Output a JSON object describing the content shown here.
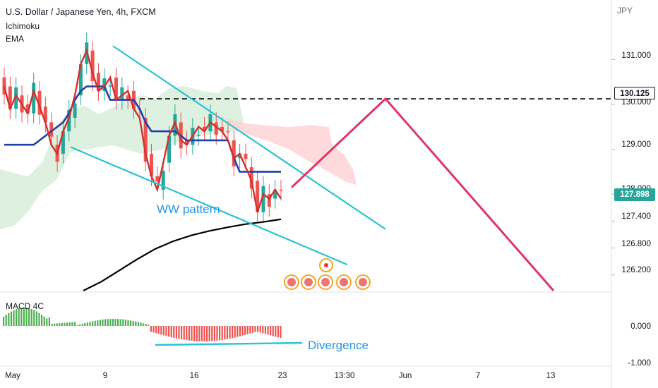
{
  "header": {
    "symbol": "U.S. Dollar / Japanese Yen, 4h, FXCM",
    "indicator_1": "Ichimoku",
    "indicator_2": "EMA",
    "macd_label": "MACD 4C"
  },
  "axis": {
    "unit": "JPY"
  },
  "price_boxes": {
    "level": "130.125",
    "last": "127.898"
  },
  "annotations": {
    "pattern": "WW pattern",
    "divergence": "Divergence"
  },
  "colors": {
    "projection": "#e0336b",
    "trendlines": "#28c3d4",
    "kijun": "#1f3fa8",
    "tenkan": "#d32f2f",
    "ema": "#000000",
    "cloud_bull": "#c8e6c9",
    "cloud_bear": "#ffcdd2",
    "candle_up": "#26a69a",
    "candle_down": "#ef5350"
  },
  "chart_data": {
    "type": "line",
    "title": "U.S. Dollar / Japanese Yen, 4h, FXCM",
    "ylabel": "JPY",
    "ylim": [
      125.85,
      132.2
    ],
    "y_ticks": [
      "131.000",
      "130.000",
      "129.000",
      "128.000",
      "127.400",
      "126.800",
      "126.200"
    ],
    "x_ticks": [
      "May",
      "9",
      "16",
      "23",
      "13:30",
      "Jun",
      "7",
      "13"
    ],
    "macd": {
      "y_ticks": [
        "0.000",
        "-1.000"
      ]
    },
    "horizontal_level": 130.125,
    "last_price": 127.898,
    "series": [
      {
        "values": [
          130.4,
          129.9,
          130.2,
          130.0,
          129.8,
          130.3,
          129.95,
          129.6,
          129.1,
          128.9,
          129.4,
          129.7,
          130.2,
          130.9,
          131.2,
          130.7,
          130.3,
          130.4,
          130.6,
          130.1,
          130.2,
          130.3,
          129.9,
          129.7,
          128.9,
          128.4,
          128.1,
          128.7,
          129.3,
          129.6,
          129.2,
          129.1,
          129.3,
          129.5,
          129.4,
          129.6,
          129.5,
          129.4,
          129.2,
          128.8,
          128.9,
          128.6,
          128.3,
          127.6,
          128.0,
          127.9,
          128.1,
          127.9
        ]
      },
      {
        "values": [
          129.1,
          129.1,
          129.1,
          129.1,
          129.1,
          129.1,
          129.2,
          129.3,
          129.4,
          129.5,
          129.6,
          129.8,
          130.1,
          130.3,
          130.4,
          130.4,
          130.4,
          130.4,
          130.1,
          130.1,
          130.1,
          130.1,
          130.1,
          129.9,
          129.6,
          129.4,
          129.4,
          129.4,
          129.4,
          129.4,
          129.3,
          129.2,
          129.2,
          129.2,
          129.2,
          129.2,
          129.2,
          129.2,
          129.2,
          128.8,
          128.5,
          128.5,
          128.5,
          128.5,
          128.5,
          128.5,
          128.5,
          128.5
        ]
      },
      {
        "values": [
          125.85,
          126.05,
          126.3,
          126.55,
          126.78,
          126.95,
          127.08,
          127.18,
          127.26,
          127.33,
          127.38,
          127.44
        ]
      },
      {
        "values": [
          128.15,
          130.125,
          125.85
        ]
      }
    ]
  }
}
